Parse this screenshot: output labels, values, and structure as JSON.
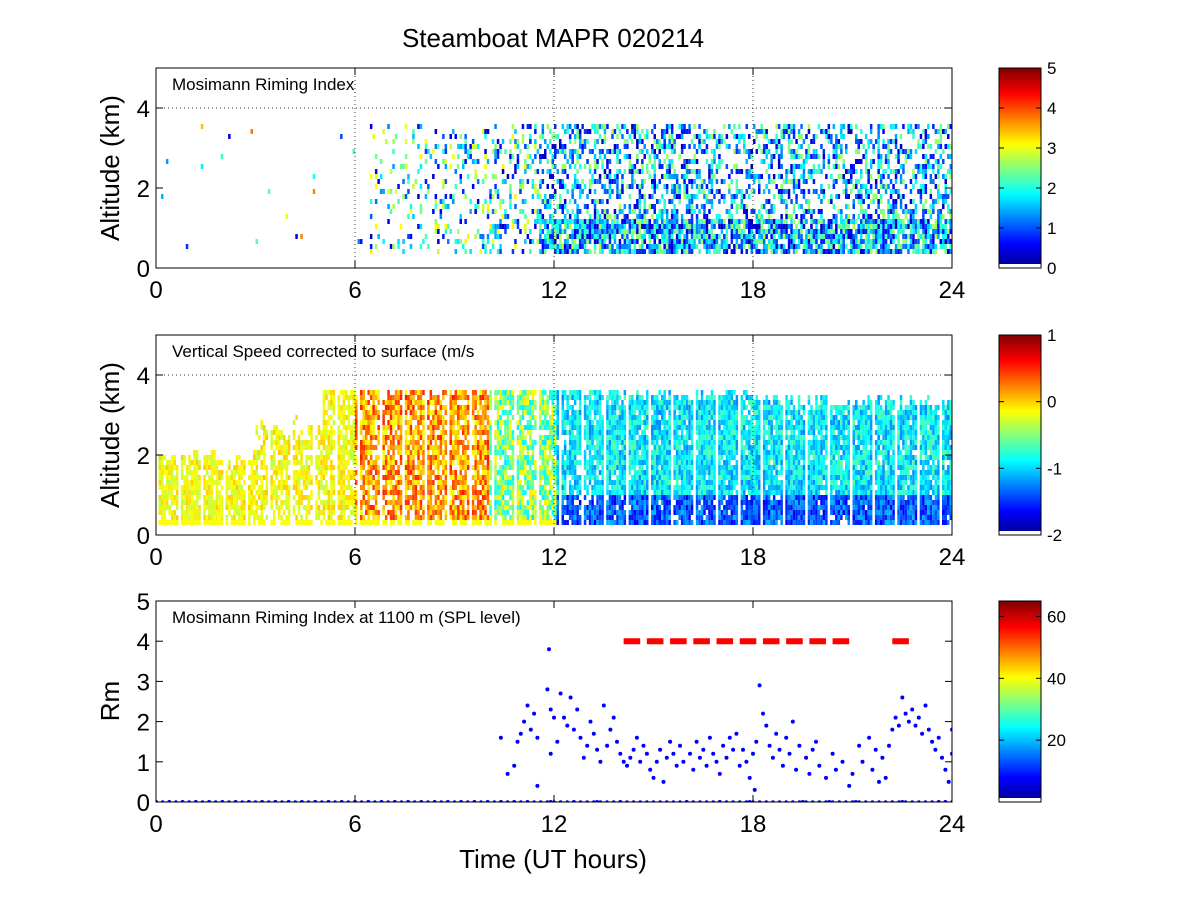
{
  "figure": {
    "title": "Steamboat MAPR 020214"
  },
  "chart_data": [
    {
      "type": "heatmap",
      "panel_label": "Mosimann Riming Index",
      "xlabel": "",
      "ylabel": "Altitude (km)",
      "xlim": [
        0,
        24
      ],
      "ylim": [
        0,
        5
      ],
      "xticks": [
        "0",
        "6",
        "12",
        "18",
        "24"
      ],
      "yticks": [
        "0",
        "2",
        "4"
      ],
      "grid": "dotted",
      "colorbar": {
        "range": [
          0,
          5
        ],
        "ticks": [
          "0",
          "1",
          "2",
          "3",
          "4",
          "5"
        ],
        "colormap": "jet"
      }
    },
    {
      "type": "heatmap",
      "panel_label": "Vertical Speed corrected to surface (m/s",
      "xlabel": "",
      "ylabel": "Altitude (km)",
      "xlim": [
        0,
        24
      ],
      "ylim": [
        0,
        5
      ],
      "xticks": [
        "0",
        "6",
        "12",
        "18",
        "24"
      ],
      "yticks": [
        "0",
        "2",
        "4"
      ],
      "grid": "dotted",
      "colorbar": {
        "range": [
          -2,
          1
        ],
        "ticks": [
          "-2",
          "-1",
          "0",
          "1"
        ],
        "colormap": "jet"
      }
    },
    {
      "type": "scatter",
      "panel_label": "Mosimann Riming Index at 1100 m (SPL level)",
      "xlabel": "Time (UT hours)",
      "ylabel": "Rm",
      "xlim": [
        0,
        24
      ],
      "ylim": [
        0,
        5
      ],
      "xticks": [
        "0",
        "6",
        "12",
        "18",
        "24"
      ],
      "yticks": [
        "0",
        "1",
        "2",
        "3",
        "4",
        "5"
      ],
      "grid": "off",
      "series_color": "#0000ff",
      "reference_line": {
        "y": 4,
        "x_segments": [
          [
            14.1,
            14.6
          ],
          [
            14.8,
            15.3
          ],
          [
            15.5,
            16.0
          ],
          [
            16.2,
            16.7
          ],
          [
            16.9,
            17.4
          ],
          [
            17.6,
            18.1
          ],
          [
            18.3,
            18.8
          ],
          [
            19.0,
            19.5
          ],
          [
            19.7,
            20.2
          ],
          [
            20.4,
            20.9
          ],
          [
            22.2,
            22.7
          ]
        ],
        "color": "#ff0000",
        "style": "dashed"
      },
      "colorbar": {
        "range": [
          0,
          65
        ],
        "ticks": [
          "20",
          "40",
          "60"
        ],
        "colormap": "jet"
      },
      "points": [
        [
          0.0,
          0
        ],
        [
          0.4,
          0
        ],
        [
          0.8,
          0
        ],
        [
          1.2,
          0
        ],
        [
          1.6,
          0
        ],
        [
          2.0,
          0
        ],
        [
          2.4,
          0
        ],
        [
          2.8,
          0
        ],
        [
          3.2,
          0
        ],
        [
          3.6,
          0
        ],
        [
          4.0,
          0
        ],
        [
          4.4,
          0
        ],
        [
          4.8,
          0
        ],
        [
          5.2,
          0
        ],
        [
          5.6,
          0
        ],
        [
          6.0,
          0
        ],
        [
          6.4,
          0
        ],
        [
          6.8,
          0
        ],
        [
          7.2,
          0
        ],
        [
          7.6,
          0
        ],
        [
          8.0,
          0
        ],
        [
          8.4,
          0
        ],
        [
          8.8,
          0
        ],
        [
          9.2,
          0
        ],
        [
          9.6,
          0
        ],
        [
          10.0,
          0
        ],
        [
          10.4,
          0
        ],
        [
          10.8,
          0
        ],
        [
          11.2,
          0
        ],
        [
          11.9,
          0
        ],
        [
          12.6,
          0
        ],
        [
          13.3,
          0
        ],
        [
          14.0,
          0
        ],
        [
          16.0,
          0
        ],
        [
          17.0,
          0
        ],
        [
          17.9,
          0
        ],
        [
          19.5,
          0
        ],
        [
          20.3,
          0
        ],
        [
          21.1,
          0
        ],
        [
          22.5,
          0
        ],
        [
          23.6,
          0
        ],
        [
          23.8,
          0
        ],
        [
          10.4,
          1.6
        ],
        [
          10.6,
          0.7
        ],
        [
          10.8,
          0.9
        ],
        [
          10.9,
          1.5
        ],
        [
          11.0,
          1.7
        ],
        [
          11.1,
          2.0
        ],
        [
          11.2,
          2.4
        ],
        [
          11.3,
          1.8
        ],
        [
          11.4,
          2.2
        ],
        [
          11.5,
          1.6
        ],
        [
          11.5,
          0.4
        ],
        [
          11.85,
          3.8
        ],
        [
          11.8,
          2.8
        ],
        [
          11.9,
          2.3
        ],
        [
          12.0,
          2.1
        ],
        [
          11.9,
          1.2
        ],
        [
          12.1,
          1.5
        ],
        [
          12.2,
          2.7
        ],
        [
          12.3,
          2.1
        ],
        [
          12.4,
          1.9
        ],
        [
          12.5,
          2.6
        ],
        [
          12.6,
          1.8
        ],
        [
          12.7,
          2.3
        ],
        [
          12.8,
          1.6
        ],
        [
          12.9,
          1.1
        ],
        [
          13.0,
          1.4
        ],
        [
          13.1,
          2.0
        ],
        [
          13.2,
          1.7
        ],
        [
          13.3,
          1.3
        ],
        [
          13.4,
          1.0
        ],
        [
          13.5,
          2.4
        ],
        [
          13.6,
          1.4
        ],
        [
          13.7,
          1.8
        ],
        [
          13.8,
          2.1
        ],
        [
          13.9,
          1.5
        ],
        [
          14.0,
          1.2
        ],
        [
          14.1,
          1.0
        ],
        [
          14.2,
          0.9
        ],
        [
          14.3,
          1.1
        ],
        [
          14.4,
          1.3
        ],
        [
          14.5,
          1.6
        ],
        [
          14.6,
          1.0
        ],
        [
          14.7,
          1.4
        ],
        [
          14.8,
          1.2
        ],
        [
          14.9,
          0.8
        ],
        [
          15.0,
          0.6
        ],
        [
          15.1,
          1.0
        ],
        [
          15.2,
          1.3
        ],
        [
          15.3,
          0.5
        ],
        [
          15.4,
          1.1
        ],
        [
          15.5,
          1.5
        ],
        [
          15.6,
          1.2
        ],
        [
          15.7,
          0.9
        ],
        [
          15.8,
          1.4
        ],
        [
          15.9,
          1.0
        ],
        [
          16.1,
          1.2
        ],
        [
          16.2,
          0.8
        ],
        [
          16.3,
          1.5
        ],
        [
          16.4,
          1.1
        ],
        [
          16.5,
          1.3
        ],
        [
          16.6,
          0.9
        ],
        [
          16.7,
          1.6
        ],
        [
          16.8,
          1.2
        ],
        [
          16.9,
          1.0
        ],
        [
          17.0,
          0.7
        ],
        [
          17.1,
          1.4
        ],
        [
          17.2,
          1.1
        ],
        [
          17.3,
          1.6
        ],
        [
          17.4,
          1.3
        ],
        [
          17.5,
          1.7
        ],
        [
          17.6,
          0.9
        ],
        [
          17.7,
          1.3
        ],
        [
          17.8,
          1.0
        ],
        [
          17.9,
          0.6
        ],
        [
          18.0,
          1.2
        ],
        [
          18.05,
          0.3
        ],
        [
          18.1,
          1.5
        ],
        [
          18.2,
          2.9
        ],
        [
          18.3,
          2.2
        ],
        [
          18.4,
          1.9
        ],
        [
          18.5,
          1.4
        ],
        [
          18.6,
          1.1
        ],
        [
          18.7,
          1.7
        ],
        [
          18.8,
          1.3
        ],
        [
          18.9,
          0.9
        ],
        [
          19.0,
          1.6
        ],
        [
          19.1,
          1.2
        ],
        [
          19.2,
          2.0
        ],
        [
          19.3,
          0.8
        ],
        [
          19.4,
          1.4
        ],
        [
          19.6,
          1.1
        ],
        [
          19.7,
          0.7
        ],
        [
          19.8,
          1.3
        ],
        [
          19.9,
          1.5
        ],
        [
          20.0,
          0.9
        ],
        [
          20.2,
          0.6
        ],
        [
          20.4,
          1.2
        ],
        [
          20.5,
          0.8
        ],
        [
          20.7,
          1.0
        ],
        [
          20.9,
          0.4
        ],
        [
          21.0,
          0.7
        ],
        [
          21.2,
          1.4
        ],
        [
          21.3,
          1.0
        ],
        [
          21.5,
          1.6
        ],
        [
          21.6,
          0.8
        ],
        [
          21.7,
          1.3
        ],
        [
          21.8,
          0.5
        ],
        [
          21.9,
          1.1
        ],
        [
          22.0,
          0.6
        ],
        [
          22.1,
          1.4
        ],
        [
          22.2,
          1.8
        ],
        [
          22.3,
          2.1
        ],
        [
          22.4,
          1.9
        ],
        [
          22.5,
          2.6
        ],
        [
          22.6,
          2.2
        ],
        [
          22.7,
          2.0
        ],
        [
          22.8,
          2.3
        ],
        [
          22.9,
          1.9
        ],
        [
          23.0,
          2.1
        ],
        [
          23.1,
          1.7
        ],
        [
          23.2,
          2.4
        ],
        [
          23.3,
          1.8
        ],
        [
          23.4,
          1.5
        ],
        [
          23.5,
          1.3
        ],
        [
          23.6,
          1.6
        ],
        [
          23.7,
          1.1
        ],
        [
          23.8,
          0.8
        ],
        [
          23.9,
          0.5
        ],
        [
          24.0,
          1.8
        ],
        [
          24.0,
          1.2
        ]
      ]
    }
  ]
}
